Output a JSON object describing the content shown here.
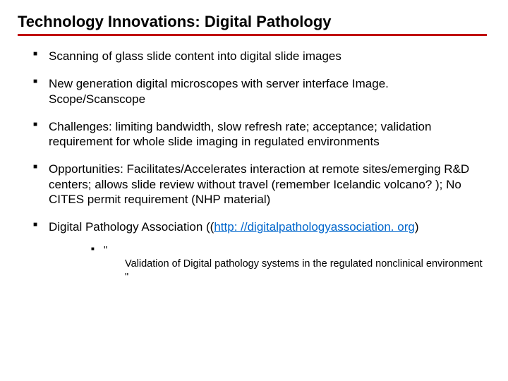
{
  "title": "Technology Innovations: Digital Pathology",
  "bullets": [
    {
      "text": "Scanning of glass slide content into digital slide images"
    },
    {
      "text": "New generation digital microscopes with server interface Image. Scope/Scanscope"
    },
    {
      "text": "Challenges: limiting bandwidth, slow refresh rate; acceptance; validation requirement for whole slide imaging in regulated environments"
    },
    {
      "text": "Opportunities: Facilitates/Accelerates interaction at remote sites/emerging R&D centers; allows slide review without travel (remember Icelandic volcano? ); No CITES permit requirement (NHP material)"
    }
  ],
  "bullet5": {
    "prefix": "Digital Pathology Association ((",
    "link": "http: //digitalpathologyassociation. org",
    "suffix": ")"
  },
  "subbullet": {
    "lead": "\"",
    "rest": "Validation of Digital pathology systems in the regulated nonclinical environment \""
  },
  "colors": {
    "rule": "#c00000",
    "link": "#0066cc",
    "text": "#000000",
    "background": "#ffffff"
  },
  "fontsize": {
    "title": 22,
    "body": 17,
    "sub": 14.5
  }
}
